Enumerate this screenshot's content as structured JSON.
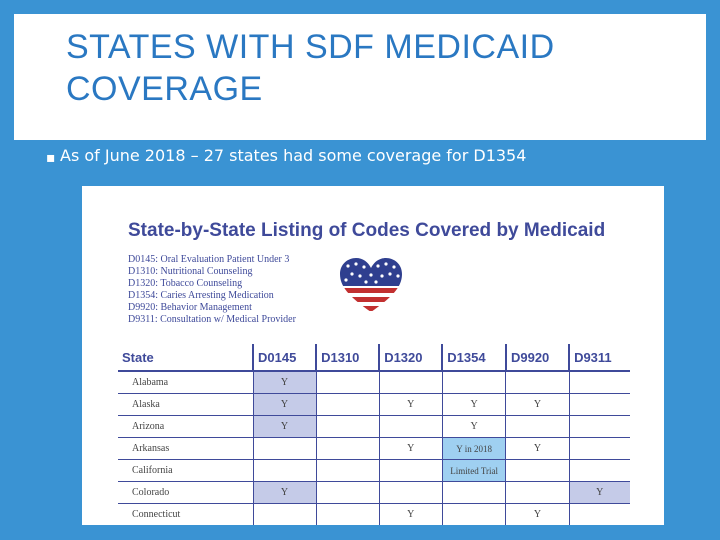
{
  "slide": {
    "title_line1": "STATES WITH SDF MEDICAID",
    "title_line2": "COVERAGE",
    "bullet_mark": "▪",
    "bullet_text": "As of June 2018 – 27 states had some coverage for D1354"
  },
  "figure": {
    "title": "State-by-State Listing of Codes Covered by Medicaid",
    "legend": [
      "D0145: Oral Evaluation Patient Under 3",
      "D1310: Nutritional Counseling",
      "D1320: Tobacco Counseling",
      "D1354: Caries Arresting Medication",
      "D9920: Behavior Management",
      "D9311: Consultation w/ Medical Provider"
    ],
    "columns": [
      "State",
      "D0145",
      "D1310",
      "D1320",
      "D1354",
      "D9920",
      "D9311"
    ],
    "rows": [
      {
        "state": "Alabama",
        "cells": [
          "Y",
          "",
          "",
          "",
          "",
          ""
        ]
      },
      {
        "state": "Alaska",
        "cells": [
          "Y",
          "",
          "Y",
          "Y",
          "Y",
          ""
        ]
      },
      {
        "state": "Arizona",
        "cells": [
          "Y",
          "",
          "",
          "Y",
          "",
          ""
        ]
      },
      {
        "state": "Arkansas",
        "cells": [
          "",
          "",
          "Y",
          "Y in 2018",
          "Y",
          ""
        ]
      },
      {
        "state": "California",
        "cells": [
          "",
          "",
          "",
          "Limited Trial",
          "",
          ""
        ]
      },
      {
        "state": "Colorado",
        "cells": [
          "Y",
          "",
          "",
          "",
          "",
          "Y"
        ]
      },
      {
        "state": "Connecticut",
        "cells": [
          "",
          "",
          "Y",
          "",
          "Y",
          ""
        ]
      }
    ]
  },
  "colors": {
    "accent": "#3a93d3",
    "title": "#2a78c2",
    "table_ink": "#3f4a9a",
    "cell_fill": "#c5cbe8",
    "highlight": "#9fd0f1"
  }
}
